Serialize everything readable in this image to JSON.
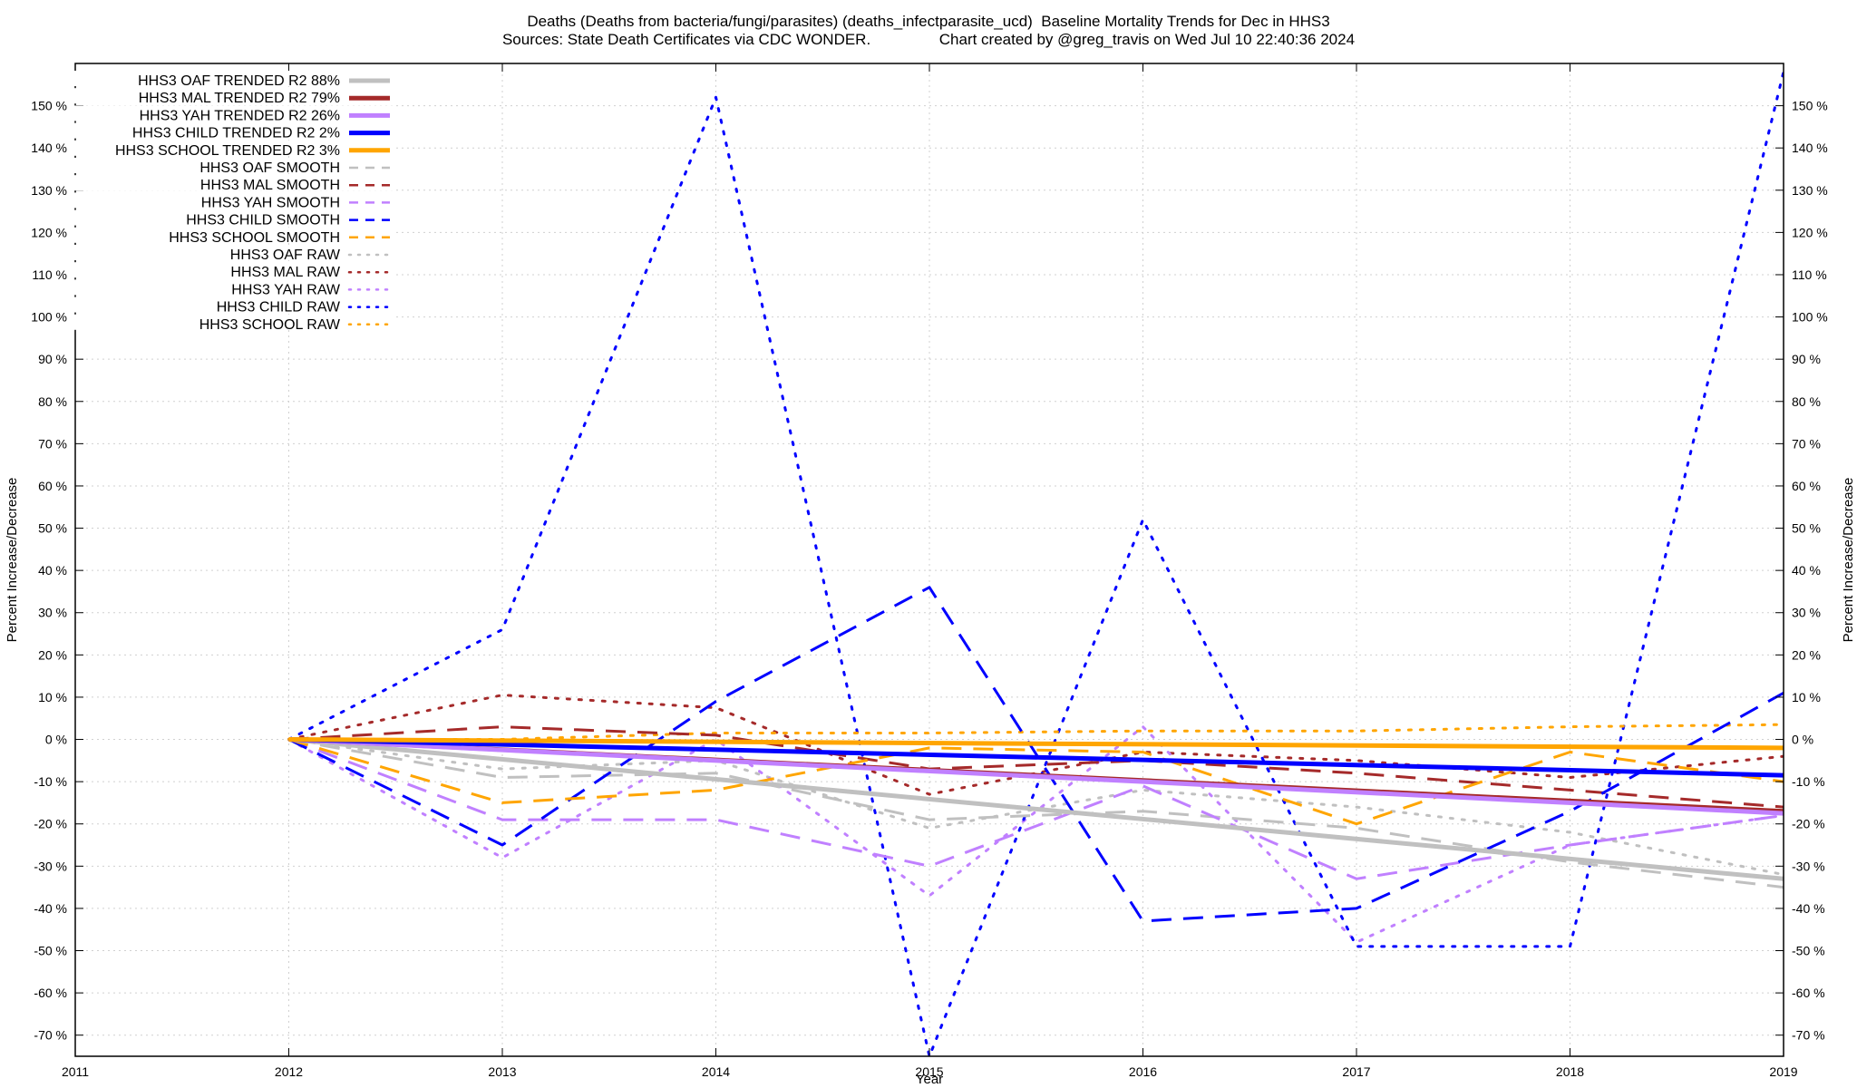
{
  "header": {
    "title_line1": "Deaths (Deaths from bacteria/fungi/parasites) (deaths_infectparasite_ucd)  Baseline Mortality Trends for Dec in HHS3",
    "title_line2": "Sources: State Death Certificates via CDC WONDER.                Chart created by @greg_travis on Wed Jul 10 22:40:36 2024"
  },
  "chart_data": {
    "type": "line",
    "xlabel": "Year",
    "ylabel": "Percent Increase/Decrease",
    "ylabel_right": "Percent Increase/Decrease",
    "xlim": [
      2011,
      2019
    ],
    "ylim": [
      -75,
      160
    ],
    "x_ticks": [
      2011,
      2012,
      2013,
      2014,
      2015,
      2016,
      2017,
      2018,
      2019
    ],
    "y_ticks": [
      150,
      140,
      130,
      120,
      110,
      100,
      90,
      80,
      70,
      60,
      50,
      40,
      30,
      20,
      10,
      0,
      -10,
      -20,
      -30,
      -40,
      -50,
      -60,
      -70
    ],
    "y_tick_suffix": " %",
    "grid": true,
    "legend_position": "top-left",
    "series": [
      {
        "name": "HHS3 OAF TRENDED R2  88%",
        "style": "solid",
        "color": "#c0c0c0",
        "width": 5,
        "x": [
          2012,
          2019
        ],
        "y": [
          0,
          -33
        ]
      },
      {
        "name": "HHS3 MAL TRENDED R2  79%",
        "style": "solid",
        "color": "#a52a2a",
        "width": 5,
        "x": [
          2012,
          2019
        ],
        "y": [
          0,
          -17
        ]
      },
      {
        "name": "HHS3 YAH TRENDED R2  26%",
        "style": "solid",
        "color": "#c080ff",
        "width": 5,
        "x": [
          2012,
          2019
        ],
        "y": [
          0,
          -17.5
        ]
      },
      {
        "name": "HHS3 CHILD TRENDED R2   2%",
        "style": "solid",
        "color": "#0000ff",
        "width": 5,
        "x": [
          2012,
          2019
        ],
        "y": [
          0,
          -8.5
        ]
      },
      {
        "name": "HHS3 SCHOOL TRENDED R2   3%",
        "style": "solid",
        "color": "#ffa500",
        "width": 5,
        "x": [
          2012,
          2019
        ],
        "y": [
          0,
          -2
        ]
      },
      {
        "name": "HHS3 OAF SMOOTH",
        "style": "dashed",
        "color": "#c0c0c0",
        "width": 3,
        "x": [
          2012,
          2013,
          2014,
          2015,
          2016,
          2017,
          2018,
          2019
        ],
        "y": [
          0,
          -9,
          -8,
          -19,
          -17,
          -21,
          -29,
          -35
        ]
      },
      {
        "name": "HHS3 MAL SMOOTH",
        "style": "dashed",
        "color": "#a52a2a",
        "width": 3,
        "x": [
          2012,
          2013,
          2014,
          2015,
          2016,
          2017,
          2018,
          2019
        ],
        "y": [
          0,
          3,
          1,
          -7,
          -5,
          -8,
          -12,
          -16
        ]
      },
      {
        "name": "HHS3 YAH SMOOTH",
        "style": "dashed",
        "color": "#c080ff",
        "width": 3,
        "x": [
          2012,
          2013,
          2014,
          2015,
          2016,
          2017,
          2018,
          2019
        ],
        "y": [
          0,
          -19,
          -19,
          -30,
          -11,
          -33,
          -25,
          -18
        ]
      },
      {
        "name": "HHS3 CHILD SMOOTH",
        "style": "dashed",
        "color": "#0000ff",
        "width": 3,
        "x": [
          2012,
          2013,
          2014,
          2015,
          2016,
          2017,
          2018,
          2019
        ],
        "y": [
          0,
          -25,
          9,
          36,
          -43,
          -40,
          -17,
          11
        ]
      },
      {
        "name": "HHS3 SCHOOL SMOOTH",
        "style": "dashed",
        "color": "#ffa500",
        "width": 3,
        "x": [
          2012,
          2013,
          2014,
          2015,
          2016,
          2017,
          2018,
          2019
        ],
        "y": [
          0,
          -15,
          -12,
          -2,
          -3,
          -20,
          -3,
          -10
        ]
      },
      {
        "name": "HHS3 OAF RAW",
        "style": "dotted",
        "color": "#c0c0c0",
        "width": 3,
        "x": [
          2012,
          2013,
          2014,
          2015,
          2016,
          2017,
          2018,
          2019
        ],
        "y": [
          0,
          -7,
          -5,
          -21,
          -12,
          -16,
          -22,
          -32
        ]
      },
      {
        "name": "HHS3 MAL RAW",
        "style": "dotted",
        "color": "#a52a2a",
        "width": 3,
        "x": [
          2012,
          2013,
          2014,
          2015,
          2016,
          2017,
          2018,
          2019
        ],
        "y": [
          0,
          10.5,
          7.5,
          -13,
          -3,
          -5,
          -9,
          -4
        ]
      },
      {
        "name": "HHS3 YAH RAW",
        "style": "dotted",
        "color": "#c080ff",
        "width": 3,
        "x": [
          2012,
          2013,
          2014,
          2015,
          2016,
          2017,
          2018,
          2019
        ],
        "y": [
          0,
          -28,
          0,
          -37,
          3,
          -48,
          -25,
          -18
        ]
      },
      {
        "name": "HHS3 CHILD RAW",
        "style": "dotted",
        "color": "#0000ff",
        "width": 3,
        "x": [
          2012,
          2013,
          2014,
          2015,
          2016,
          2017,
          2018,
          2019
        ],
        "y": [
          0,
          26,
          152,
          -75,
          52,
          -49,
          -49,
          158
        ]
      },
      {
        "name": "HHS3 SCHOOL RAW",
        "style": "dotted",
        "color": "#ffa500",
        "width": 3,
        "x": [
          2012,
          2013,
          2014,
          2015,
          2016,
          2017,
          2018,
          2019
        ],
        "y": [
          0,
          0,
          1.5,
          1.5,
          2,
          2,
          3,
          3.5
        ]
      }
    ]
  }
}
